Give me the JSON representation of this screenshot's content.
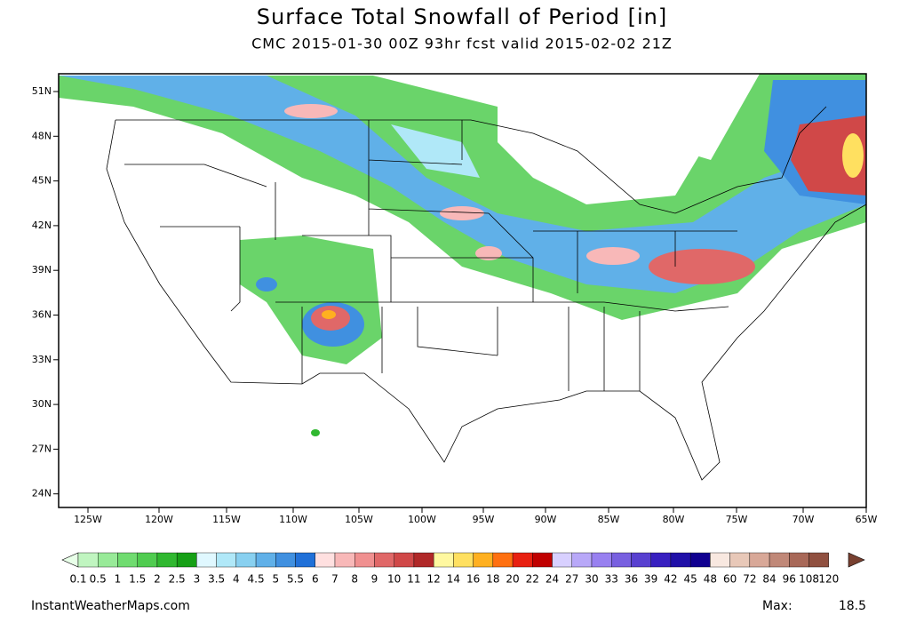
{
  "header": {
    "title": "Surface Total Snowfall of Period [in]",
    "subtitle": "CMC 2015-01-30 00Z 93hr fcst valid 2015-02-02 21Z"
  },
  "map": {
    "lat_labels": [
      "51N",
      "48N",
      "45N",
      "42N",
      "39N",
      "36N",
      "33N",
      "30N",
      "27N",
      "24N"
    ],
    "lon_labels": [
      "125W",
      "120W",
      "115W",
      "110W",
      "105W",
      "100W",
      "95W",
      "90W",
      "85W",
      "80W",
      "75W",
      "70W",
      "65W"
    ]
  },
  "colorbar": {
    "labels": [
      0.1,
      0.5,
      1,
      1.5,
      2,
      2.5,
      3,
      3.5,
      4,
      4.5,
      5,
      5.5,
      6,
      7,
      8,
      9,
      10,
      11,
      12,
      14,
      16,
      18,
      20,
      22,
      24,
      27,
      30,
      33,
      36,
      39,
      42,
      45,
      48,
      60,
      72,
      84,
      96,
      108,
      120
    ],
    "colors": [
      "#e8ffe8",
      "#c0f5c0",
      "#98ea98",
      "#70dc70",
      "#50cc50",
      "#30b830",
      "#16a016",
      "#e0f8ff",
      "#b0e8f8",
      "#88d0f0",
      "#60b0e8",
      "#4090e0",
      "#2070d8",
      "#ffe0e0",
      "#f8b8b8",
      "#f09090",
      "#e06868",
      "#d04848",
      "#b02828",
      "#fff8a0",
      "#ffe060",
      "#ffb020",
      "#ff7010",
      "#e82010",
      "#c00000",
      "#d8d0ff",
      "#b8a8f8",
      "#9880f0",
      "#7860e0",
      "#5840d0",
      "#3820c0",
      "#2010a8",
      "#100090",
      "#f8e8e0",
      "#e8c8b8",
      "#d8a898",
      "#c08878",
      "#a86858",
      "#905040",
      "#784030"
    ]
  },
  "footer": {
    "source": "InstantWeatherMaps.com",
    "max_label": "Max:",
    "max_value": 18.5
  }
}
